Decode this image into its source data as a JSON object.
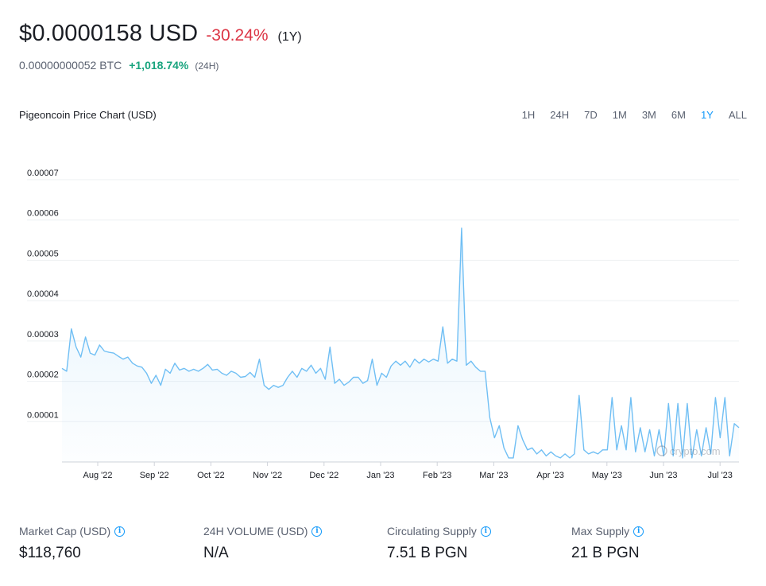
{
  "header": {
    "price": "$0.0000158 USD",
    "change": "-30.24%",
    "change_color": "#dc3545",
    "period": "(1Y)",
    "btc_price": "0.00000000052 BTC",
    "btc_change": "+1,018.74%",
    "btc_change_color": "#18a47e",
    "btc_period": "(24H)"
  },
  "chart_title": "Pigeoncoin Price Chart (USD)",
  "ranges": {
    "options": [
      "1H",
      "24H",
      "7D",
      "1M",
      "3M",
      "6M",
      "1Y",
      "ALL"
    ],
    "selected": "1Y",
    "selected_color": "#1199fa"
  },
  "chart_data": {
    "type": "area",
    "ylabel": "",
    "xlabel": "",
    "ylim": [
      0,
      7e-05
    ],
    "y_ticks": [
      "0.00001",
      "0.00002",
      "0.00003",
      "0.00004",
      "0.00005",
      "0.00006",
      "0.00007"
    ],
    "x_ticks": [
      "Aug '22",
      "Sep '22",
      "Oct '22",
      "Nov '22",
      "Dec '22",
      "Jan '23",
      "Feb '23",
      "Mar '23",
      "Apr '23",
      "May '23",
      "Jun '23",
      "Jul '23"
    ],
    "grid": true,
    "line_color": "#70bff4",
    "watermark": "crypto.com",
    "series": [
      {
        "values": [
          2.32e-05,
          2.25e-05,
          3.3e-05,
          2.85e-05,
          2.6e-05,
          3.1e-05,
          2.7e-05,
          2.65e-05,
          2.9e-05,
          2.75e-05,
          2.72e-05,
          2.7e-05,
          2.62e-05,
          2.55e-05,
          2.6e-05,
          2.45e-05,
          2.38e-05,
          2.35e-05,
          2.2e-05,
          1.95e-05,
          2.15e-05,
          1.9e-05,
          2.3e-05,
          2.2e-05,
          2.45e-05,
          2.28e-05,
          2.32e-05,
          2.25e-05,
          2.3e-05,
          2.25e-05,
          2.32e-05,
          2.42e-05,
          2.28e-05,
          2.3e-05,
          2.2e-05,
          2.15e-05,
          2.25e-05,
          2.2e-05,
          2.1e-05,
          2.12e-05,
          2.22e-05,
          2.1e-05,
          2.55e-05,
          1.9e-05,
          1.8e-05,
          1.9e-05,
          1.85e-05,
          1.9e-05,
          2.1e-05,
          2.25e-05,
          2.1e-05,
          2.32e-05,
          2.25e-05,
          2.4e-05,
          2.2e-05,
          2.32e-05,
          2.05e-05,
          2.85e-05,
          1.95e-05,
          2.05e-05,
          1.9e-05,
          1.98e-05,
          2.1e-05,
          2.1e-05,
          1.95e-05,
          2.02e-05,
          2.55e-05,
          1.9e-05,
          2.2e-05,
          2.1e-05,
          2.38e-05,
          2.5e-05,
          2.4e-05,
          2.5e-05,
          2.35e-05,
          2.55e-05,
          2.45e-05,
          2.55e-05,
          2.48e-05,
          2.55e-05,
          2.5e-05,
          3.35e-05,
          2.45e-05,
          2.55e-05,
          2.5e-05,
          5.8e-05,
          2.4e-05,
          2.5e-05,
          2.35e-05,
          2.25e-05,
          2.25e-05,
          1.1e-05,
          6e-06,
          9e-06,
          3.5e-06,
          1e-06,
          1e-06,
          9e-06,
          5.5e-06,
          3e-06,
          3.5e-06,
          2e-06,
          3e-06,
          1.5e-06,
          2.5e-06,
          1.5e-06,
          1e-06,
          2e-06,
          1e-06,
          2e-06,
          1.65e-05,
          3e-06,
          2e-06,
          2.5e-06,
          2e-06,
          3e-06,
          3e-06,
          1.6e-05,
          3e-06,
          9e-06,
          3e-06,
          1.6e-05,
          2.5e-06,
          8.5e-06,
          2.5e-06,
          8e-06,
          1.5e-06,
          8e-06,
          1.5e-06,
          1.45e-05,
          1.5e-06,
          1.45e-05,
          1e-06,
          1.45e-05,
          1e-06,
          8e-06,
          1.5e-06,
          8.5e-06,
          2e-06,
          1.6e-05,
          6e-06,
          1.6e-05,
          1.5e-06,
          9.5e-06,
          8.5e-06
        ]
      }
    ]
  },
  "stats": [
    {
      "label": "Market Cap (USD)",
      "value": "$118,760"
    },
    {
      "label": "24H VOLUME (USD)",
      "value": "N/A"
    },
    {
      "label": "Circulating Supply",
      "value": "7.51 B PGN"
    },
    {
      "label": "Max Supply",
      "value": "21 B PGN"
    }
  ],
  "icons": {
    "info": "info-icon"
  }
}
